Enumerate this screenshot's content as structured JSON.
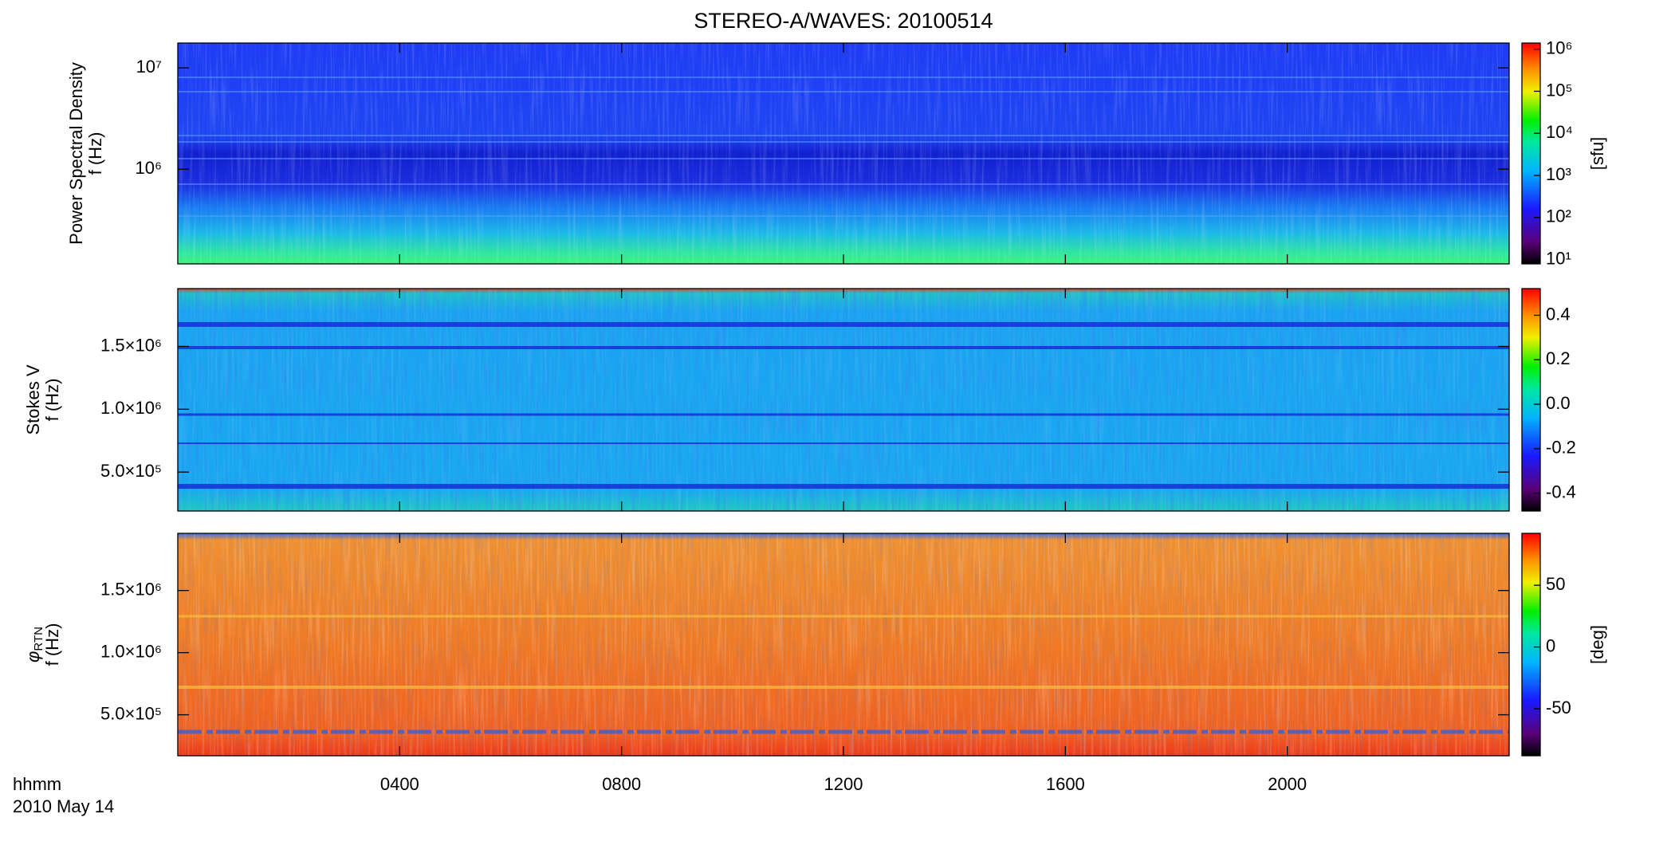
{
  "title": "STEREO-A/WAVES: 20100514",
  "time_axis": {
    "xlim": [
      0,
      24
    ],
    "xticks": [
      {
        "value": 4,
        "label": "0400"
      },
      {
        "value": 8,
        "label": "0800"
      },
      {
        "value": 12,
        "label": "1200"
      },
      {
        "value": 16,
        "label": "1600"
      },
      {
        "value": 20,
        "label": "2000"
      }
    ],
    "label": "hhmm",
    "date": "2010 May 14"
  },
  "chart_data": [
    {
      "type": "spectrogram",
      "ylabel": [
        "Power Spectral Density",
        "f (Hz)"
      ],
      "log": true,
      "ylim": [
        116000,
        17600000
      ],
      "yticks": [
        {
          "value": 1000000,
          "label": "10⁶"
        },
        {
          "value": 10000000,
          "label": "10⁷"
        }
      ],
      "colorbar": {
        "label": "[sfu]",
        "log": true,
        "lim": [
          7.9,
          1400000
        ],
        "ticks": [
          {
            "value": 10,
            "label": "10¹"
          },
          {
            "value": 100,
            "label": "10²"
          },
          {
            "value": 1000,
            "label": "10³"
          },
          {
            "value": 10000,
            "label": "10⁴"
          },
          {
            "value": 100000,
            "label": "10⁵"
          },
          {
            "value": 1000000,
            "label": "10⁶"
          }
        ]
      }
    },
    {
      "type": "spectrogram",
      "ylabel": [
        "Stokes V",
        "f (Hz)"
      ],
      "log": false,
      "ylim": [
        190000,
        1960000
      ],
      "yticks": [
        {
          "value": 500000,
          "label": "5.0×10⁵"
        },
        {
          "value": 1000000,
          "label": "1.0×10⁶"
        },
        {
          "value": 1500000,
          "label": "1.5×10⁶"
        }
      ],
      "colorbar": {
        "log": false,
        "lim": [
          -0.48,
          0.52
        ],
        "ticks": [
          -0.4,
          -0.2,
          {
            "value": 0,
            "label": "0.0"
          },
          0.2,
          0.4
        ]
      }
    },
    {
      "type": "spectrogram",
      "ylabel_symbol": "φ",
      "ylabel_subscript": "RTN",
      "ylabel": [
        "f (Hz)"
      ],
      "log": false,
      "ylim": [
        170000,
        1960000
      ],
      "yticks": [
        {
          "value": 500000,
          "label": "5.0×10⁵"
        },
        {
          "value": 1000000,
          "label": "1.0×10⁶"
        },
        {
          "value": 1500000,
          "label": "1.5×10⁶"
        }
      ],
      "colorbar": {
        "label": "[deg]",
        "log": false,
        "lim": [
          -88,
          92
        ],
        "ticks": [
          -50,
          0,
          50
        ]
      }
    }
  ]
}
